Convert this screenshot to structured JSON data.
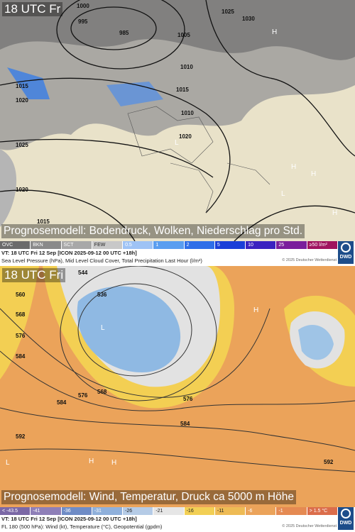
{
  "panels": [
    {
      "time": "18 UTC Fr",
      "title": "Prognosemodell: Bodendruck, Wolken, Niederschlag pro Std.",
      "legend": [
        "OVC",
        "BKN",
        "SCT",
        "FEW",
        "0.5",
        "1",
        "2",
        "5",
        "10",
        "25",
        "≥50 l/m²"
      ],
      "logo": "DWD",
      "valid_time": "VT: 18 UTC Fri  12 Sep [ICON 2025-09-12 00 UTC +18h]",
      "description": "Sea Level Pressure (hPa), Mid Level Cloud Cover, Total Precipitation Last Hour (l/m²)",
      "copyright": "© 2025 Deutscher Wetterdienst",
      "contour_labels": [
        "1000",
        "995",
        "985",
        "1005",
        "1010",
        "1015",
        "1010",
        "1020",
        "1025",
        "1030",
        "1015",
        "1020",
        "1025",
        "1020",
        "1015"
      ],
      "symbols": [
        "H",
        "L",
        "H",
        "H",
        "L",
        "H"
      ]
    },
    {
      "time": "18 UTC Fri",
      "title": "Prognosemodell: Wind, Temperatur, Druck ca 5000 m Höhe",
      "legend": [
        "< -43.5",
        "-41",
        "-36",
        "-31",
        "-26",
        "-21",
        "-16",
        "-11",
        "-6",
        "-1",
        "> 1.5 °C"
      ],
      "logo": "DWD",
      "valid_time": "VT: 18 UTC Fri  12 Sep [ICON 2025-09-12 00 UTC +18h]",
      "description": "FL 180 (500 hPa): Wind (kt), Temperature (°C), Geopotential (gpdm)",
      "copyright": "© 2025 Deutscher Wetterdienst",
      "contour_labels": [
        "544",
        "536",
        "560",
        "568",
        "576",
        "584",
        "568",
        "576",
        "584",
        "584",
        "576",
        "592",
        "592"
      ],
      "symbols": [
        "L",
        "H",
        "L",
        "H",
        "H"
      ]
    }
  ]
}
